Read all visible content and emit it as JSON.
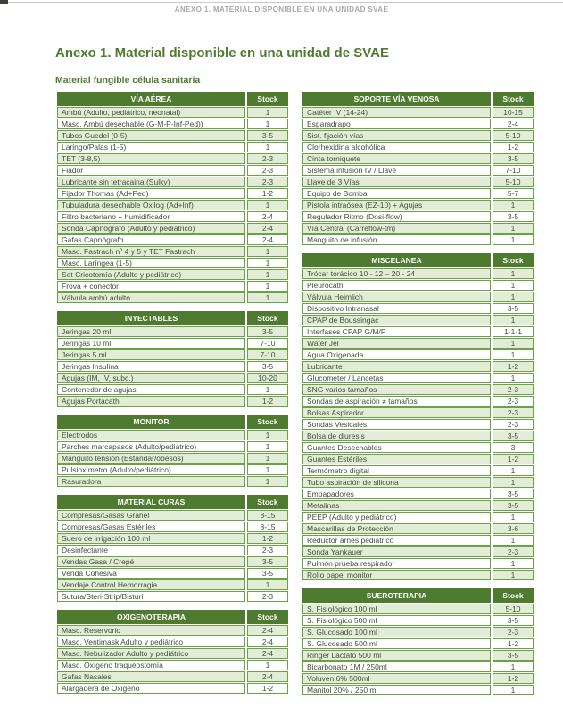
{
  "page": {
    "running_header": "ANEXO 1. MATERIAL DISPONIBLE EN UNA UNIDAD SVAE",
    "title": "Anexo 1. Material disponible en una unidad de SVAE",
    "subtitle": "Material fungible célula sanitaria"
  },
  "stock_header": "Stock",
  "colors": {
    "header_bg": "#4e7b30",
    "border": "#6aa345",
    "band": "#e2ecd7",
    "text": "#40503a",
    "title": "#4f7b2e",
    "running_header": "#a8a8a8"
  },
  "columns": {
    "left": [
      {
        "title": "VÍA AÉREA",
        "rows": [
          {
            "item": "Ambú (Adulto, pediátrico, neonatal)",
            "stock": "1"
          },
          {
            "item": "Masc. Ambú desechable (G-M-P-Inf-Ped))",
            "stock": "1"
          },
          {
            "item": "Tubos Guedel (0-5)",
            "stock": "3-5"
          },
          {
            "item": "Laringo/Palas (1-5)",
            "stock": "1"
          },
          {
            "item": "TET (3-8,5)",
            "stock": "2-3"
          },
          {
            "item": "Fiador",
            "stock": "2-3"
          },
          {
            "item": "Lubricante sin tetracaina (Sulky)",
            "stock": "2-3"
          },
          {
            "item": "Fijador Thomas (Ad+Ped)",
            "stock": "1-2"
          },
          {
            "item": "Tubuladura desechable Oxilog (Ad+Inf)",
            "stock": "1"
          },
          {
            "item": "Filtro bacteriano + humidificador",
            "stock": "2-4"
          },
          {
            "item": "Sonda Capnógrafo (Adulto y pediátrico)",
            "stock": "2-4"
          },
          {
            "item": "Gafas Capnógrafo",
            "stock": "2-4"
          },
          {
            "item": "Masc. Fastrach nº 4 y 5 y TET Fastrach",
            "stock": "1"
          },
          {
            "item": "Masc. Laríngea (1-5)",
            "stock": "1"
          },
          {
            "item": "Set Cricotomía (Adulto y pediátrico)",
            "stock": "1"
          },
          {
            "item": "Frova + conector",
            "stock": "1"
          },
          {
            "item": "Válvula ambú adulto",
            "stock": "1"
          }
        ]
      },
      {
        "title": "INYECTABLES",
        "rows": [
          {
            "item": "Jeringas 20 ml",
            "stock": "3-5"
          },
          {
            "item": "Jeringas 10 ml",
            "stock": "7-10"
          },
          {
            "item": "Jeringas 5 ml",
            "stock": "7-10"
          },
          {
            "item": "Jeringas Insulina",
            "stock": "3-5"
          },
          {
            "item": "Agujas (IM, IV, subc.)",
            "stock": "10-20"
          },
          {
            "item": "Contenedor de agujas",
            "stock": "1"
          },
          {
            "item": "Agujas Portacath",
            "stock": "1-2"
          }
        ]
      },
      {
        "title": "MONITOR",
        "rows": [
          {
            "item": "Electrodos",
            "stock": "1"
          },
          {
            "item": "Parches marcapasos (Adulto/pediátrico)",
            "stock": "1"
          },
          {
            "item": "Manguito tensión (Estándar/obesos)",
            "stock": "1"
          },
          {
            "item": "Pulsioxímetro (Adulto/pediátrico)",
            "stock": "1"
          },
          {
            "item": "Rasuradora",
            "stock": "1"
          }
        ]
      },
      {
        "title": "MATERIAL CURAS",
        "rows": [
          {
            "item": "Compresas/Gasas Granel",
            "stock": "8-15"
          },
          {
            "item": "Compresas/Gasas Estériles",
            "stock": "8-15"
          },
          {
            "item": "Suero de irrigación 100 ml",
            "stock": "1-2"
          },
          {
            "item": "Desinfectante",
            "stock": "2-3"
          },
          {
            "item": "Vendas Gasa / Crepé",
            "stock": "3-5"
          },
          {
            "item": "Venda Cohesiva",
            "stock": "3-5"
          },
          {
            "item": "Vendaje Control Hemorragia",
            "stock": "1"
          },
          {
            "item": "Sutura/Steri-Strip/Bisturí",
            "stock": "2-3"
          }
        ]
      },
      {
        "title": "OXIGENOTERAPIA",
        "rows": [
          {
            "item": "Masc. Reservorio",
            "stock": "2-4"
          },
          {
            "item": "Masc. Ventimask Adulto y pediátrico",
            "stock": "2-4"
          },
          {
            "item": "Masc. Nebulizador Adulto y pediátrico",
            "stock": "2-4"
          },
          {
            "item": "Masc. Oxígeno traqueostomía",
            "stock": "1"
          },
          {
            "item": "Gafas Nasales",
            "stock": "2-4"
          },
          {
            "item": "Alargadera de Oxigeno",
            "stock": "1-2"
          }
        ]
      }
    ],
    "right": [
      {
        "title": "SOPORTE VÍA VENOSA",
        "rows": [
          {
            "item": "Catéter IV (14-24)",
            "stock": "10-15"
          },
          {
            "item": "Esparadrapo",
            "stock": "2-4"
          },
          {
            "item": "Sist. fijación vías",
            "stock": "5-10"
          },
          {
            "item": "Clorhexidina alcohólica",
            "stock": "1-2"
          },
          {
            "item": "Cinta torniquete",
            "stock": "3-5"
          },
          {
            "item": "Sistema infusión IV / Llave",
            "stock": "7-10"
          },
          {
            "item": "Llave de 3 Vías",
            "stock": "5-10"
          },
          {
            "item": "Equipo de Bomba",
            "stock": "5-7"
          },
          {
            "item": "Pistola intraósea (EZ-10) + Agujas",
            "stock": "1"
          },
          {
            "item": "Regulador Ritmo (Dosi-flow)",
            "stock": "3-5"
          },
          {
            "item": "Vía Central (Carreflow-tm)",
            "stock": "1"
          },
          {
            "item": "Manguito de infusión",
            "stock": "1"
          }
        ]
      },
      {
        "title": "MISCELANEA",
        "rows": [
          {
            "item": "Trócar torácico 10 - 12 – 20 - 24",
            "stock": "1"
          },
          {
            "item": "Pleurocath",
            "stock": "1"
          },
          {
            "item": "Válvula Heimlich",
            "stock": "1"
          },
          {
            "item": "Dispositivo Intranasal",
            "stock": "3-5"
          },
          {
            "item": "CPAP de Boussingac",
            "stock": "1"
          },
          {
            "item": "Interfases CPAP G/M/P",
            "stock": "1-1-1"
          },
          {
            "item": "Water Jel",
            "stock": "1"
          },
          {
            "item": "Agua Oxigenada",
            "stock": "1"
          },
          {
            "item": "Lubricante",
            "stock": "1-2"
          },
          {
            "item": "Glucometer / Lancetas",
            "stock": "1"
          },
          {
            "item": "SNG varios tamaños",
            "stock": "2-3"
          },
          {
            "item": "Sondas de aspiración ≠ tamaños",
            "stock": "2-3"
          },
          {
            "item": "Bolsas Aspirador",
            "stock": "2-3"
          },
          {
            "item": "Sondas Vesicales",
            "stock": "2-3"
          },
          {
            "item": "Bolsa de diuresis",
            "stock": "3-5"
          },
          {
            "item": "Guantes Desechables",
            "stock": "3"
          },
          {
            "item": "Guantes Estériles",
            "stock": "1-2"
          },
          {
            "item": "Termómetro digital",
            "stock": "1"
          },
          {
            "item": "Tubo aspiración de silicona",
            "stock": "1"
          },
          {
            "item": "Empapadores",
            "stock": "3-5"
          },
          {
            "item": "Metalinas",
            "stock": "3-5"
          },
          {
            "item": "PEEP (Adulto y pediátrico)",
            "stock": "1"
          },
          {
            "item": "Mascarillas de Protección",
            "stock": "3-6"
          },
          {
            "item": "Reductor arnés pediátrico",
            "stock": "1"
          },
          {
            "item": "Sonda Yankauer",
            "stock": "2-3"
          },
          {
            "item": "Pulmón prueba respirador",
            "stock": "1"
          },
          {
            "item": "Rollo papel monitor",
            "stock": "1"
          }
        ]
      },
      {
        "title": "SUEROTERAPIA",
        "rows": [
          {
            "item": "S. Fisiológico 100 ml",
            "stock": "5-10"
          },
          {
            "item": "S. Fisiológico 500 ml",
            "stock": "3-5"
          },
          {
            "item": "S. Glucosado 100 ml",
            "stock": "2-3"
          },
          {
            "item": "S. Glucosado 500 ml",
            "stock": "1-2"
          },
          {
            "item": "Ringer Lactato 500 ml",
            "stock": "3-5"
          },
          {
            "item": "Bicarbonato 1M / 250ml",
            "stock": "1"
          },
          {
            "item": "Voluven 6% 500ml",
            "stock": "1-2"
          },
          {
            "item": "Manitol 20% / 250 ml",
            "stock": "1"
          }
        ]
      }
    ]
  }
}
